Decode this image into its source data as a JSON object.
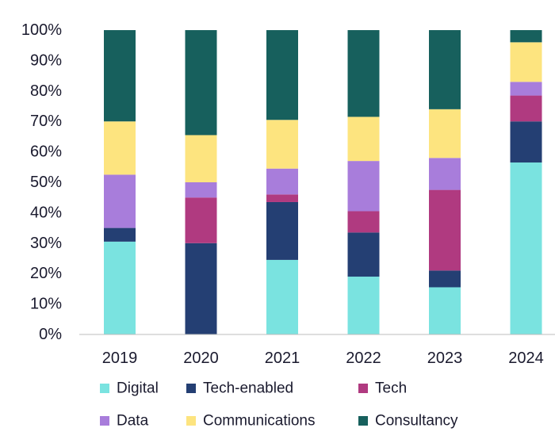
{
  "chart_data": {
    "type": "bar",
    "stacked": true,
    "categories": [
      "2019",
      "2020",
      "2021",
      "2022",
      "2023",
      "2024"
    ],
    "y_ticks": [
      "0%",
      "10%",
      "20%",
      "30%",
      "40%",
      "50%",
      "60%",
      "70%",
      "80%",
      "90%",
      "100%"
    ],
    "ylim": [
      0,
      100
    ],
    "grid": false,
    "legend_position": "bottom",
    "series": [
      {
        "name": "Digital",
        "color": "#7ae3e0",
        "values": [
          30.5,
          0,
          24.5,
          19,
          15.5,
          56.5
        ]
      },
      {
        "name": "Tech-enabled",
        "color": "#243f73",
        "values": [
          4.5,
          30,
          19,
          14.5,
          5.5,
          13.5
        ]
      },
      {
        "name": "Tech",
        "color": "#b03a80",
        "values": [
          0,
          15,
          2.5,
          7,
          26.5,
          8.5
        ]
      },
      {
        "name": "Data",
        "color": "#a87ddb",
        "values": [
          17.5,
          5,
          8.5,
          16.5,
          10.5,
          4.5
        ]
      },
      {
        "name": "Communications",
        "color": "#fde47f",
        "values": [
          17.5,
          15.5,
          16,
          14.5,
          16,
          13
        ]
      },
      {
        "name": "Consultancy",
        "color": "#17605d",
        "values": [
          30,
          34.5,
          29.5,
          28.5,
          26,
          4
        ]
      }
    ]
  }
}
